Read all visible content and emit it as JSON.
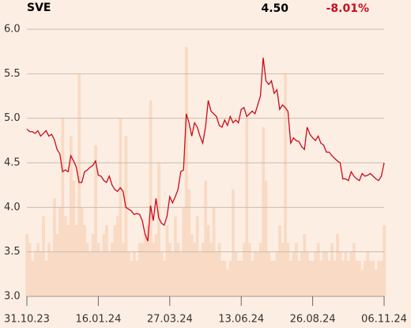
{
  "header": {
    "ticker": "SVE",
    "last": {
      "value": 4.5,
      "label": "4.50"
    },
    "change": {
      "value": -8.01,
      "label": "-8.01%"
    }
  },
  "chart_data": {
    "type": "line",
    "series": [
      {
        "color": "#cc0a1b",
        "values": [
          4.88,
          4.85,
          4.85,
          4.83,
          4.86,
          4.8,
          4.83,
          4.86,
          4.8,
          4.82,
          4.76,
          4.65,
          4.6,
          4.4,
          4.42,
          4.4,
          4.58,
          4.52,
          4.45,
          4.28,
          4.28,
          4.4,
          4.42,
          4.45,
          4.47,
          4.52,
          4.36,
          4.35,
          4.3,
          4.28,
          4.35,
          4.25,
          4.2,
          4.18,
          4.22,
          4.18,
          4.0,
          3.98,
          3.96,
          3.92,
          3.93,
          3.92,
          3.85,
          3.7,
          3.62,
          4.02,
          3.85,
          4.1,
          3.88,
          3.82,
          3.8,
          3.9,
          4.12,
          4.05,
          4.12,
          4.2,
          4.4,
          4.42,
          5.05,
          4.95,
          4.8,
          4.95,
          4.9,
          4.8,
          4.72,
          4.9,
          5.2,
          5.08,
          5.05,
          5.02,
          4.92,
          4.9,
          4.98,
          4.92,
          5.02,
          4.95,
          4.98,
          4.95,
          5.1,
          5.12,
          5.02,
          5.05,
          5.08,
          5.05,
          5.15,
          5.25,
          5.68,
          5.42,
          5.38,
          5.42,
          5.28,
          5.32,
          5.1,
          5.15,
          5.12,
          5.08,
          4.72,
          4.78,
          4.75,
          4.74,
          4.68,
          4.65,
          4.9,
          4.82,
          4.78,
          4.75,
          4.8,
          4.72,
          4.7,
          4.62,
          4.62,
          4.58,
          4.55,
          4.52,
          4.5,
          4.32,
          4.32,
          4.3,
          4.4,
          4.35,
          4.32,
          4.3,
          4.38,
          4.35,
          4.36,
          4.38,
          4.35,
          4.32,
          4.3,
          4.35,
          4.5
        ]
      },
      {
        "color": "#f9dac4",
        "axis": "y2",
        "values": [
          7,
          6,
          4,
          5,
          6,
          5,
          9,
          4,
          6,
          5,
          11,
          7,
          10,
          20,
          9,
          8,
          18,
          13,
          8,
          25,
          10,
          8,
          6,
          5,
          7,
          17,
          6,
          5,
          7,
          8,
          5,
          6,
          8,
          9,
          20,
          6,
          18,
          5,
          4,
          5,
          4,
          6,
          6,
          7,
          8,
          22,
          6,
          7,
          15,
          5,
          4,
          8,
          6,
          5,
          9,
          6,
          5,
          10,
          28,
          12,
          7,
          6,
          9,
          5,
          6,
          13,
          8,
          6,
          10,
          5,
          6,
          4,
          4,
          3,
          4,
          12,
          5,
          4,
          4,
          6,
          20,
          6,
          4,
          5,
          5,
          6,
          19,
          13,
          5,
          4,
          4,
          5,
          8,
          6,
          25,
          6,
          4,
          5,
          6,
          4,
          5,
          7,
          5,
          4,
          4,
          5,
          6,
          4,
          5,
          5,
          4,
          6,
          4,
          7,
          5,
          4,
          5,
          4,
          5,
          6,
          4,
          4,
          3,
          4,
          5,
          4,
          4,
          3,
          4,
          4,
          8
        ]
      }
    ],
    "xlim": [
      0,
      130
    ],
    "xticks": [
      {
        "value": 0,
        "label": "31.10.23"
      },
      {
        "value": 26,
        "label": "16.01.24"
      },
      {
        "value": 52,
        "label": "27.03.24"
      },
      {
        "value": 78,
        "label": "13.06.24"
      },
      {
        "value": 104,
        "label": "26.08.24"
      },
      {
        "value": 130,
        "label": "06.11.24"
      }
    ],
    "ylim": [
      3,
      6
    ],
    "yticks": [
      {
        "value": 3,
        "label": "3.0"
      },
      {
        "value": 3.5,
        "label": "3.5"
      },
      {
        "value": 4,
        "label": "4.0"
      },
      {
        "value": 4.5,
        "label": "4.5"
      },
      {
        "value": 5,
        "label": "5.0"
      },
      {
        "value": 5.5,
        "label": "5.5"
      },
      {
        "value": 6,
        "label": "6.0"
      }
    ],
    "y2lim": [
      0,
      30
    ],
    "grid": true
  }
}
